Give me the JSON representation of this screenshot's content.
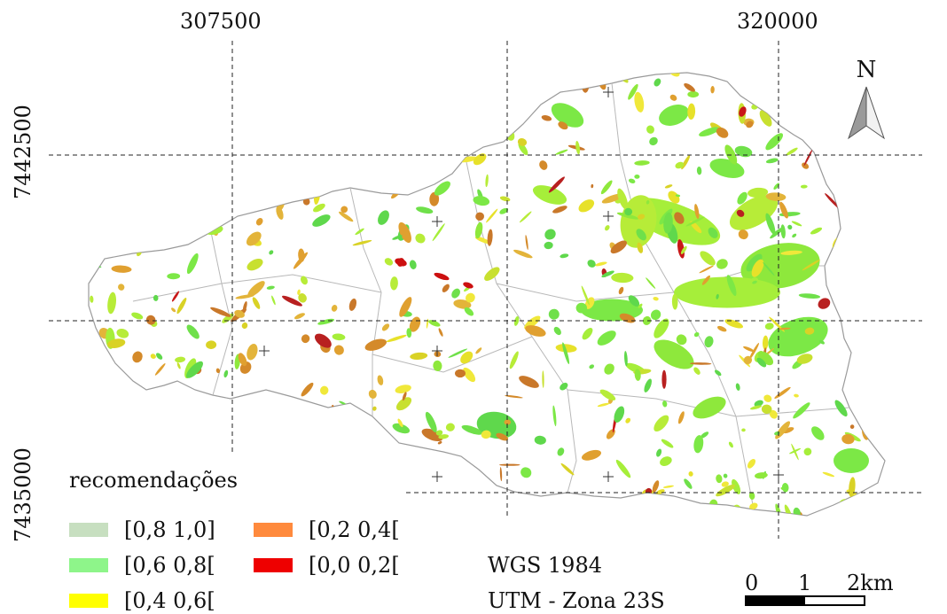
{
  "grid_labels": {
    "x_left": "307500",
    "x_right": "320000",
    "y_top": "7442500",
    "y_bottom": "7435000"
  },
  "north": {
    "letter": "N",
    "icon": "north-arrow-icon"
  },
  "legend": {
    "title": "recomendações",
    "items": [
      {
        "label": "[0,8 1,0]",
        "color": "#c7dfc0"
      },
      {
        "label": "[0,6 0,8[",
        "color": "#8ef58a"
      },
      {
        "label": "[0,4 0,6[",
        "color": "#ffff00"
      },
      {
        "label": "[0,2 0,4[",
        "color": "#ff8a3d"
      },
      {
        "label": "[0,0 0,2[",
        "color": "#ee0000"
      }
    ]
  },
  "datum": "WGS 1984",
  "projection": "UTM - Zona 23S",
  "scale": {
    "ticks": [
      "0",
      "1",
      "2km"
    ]
  }
}
